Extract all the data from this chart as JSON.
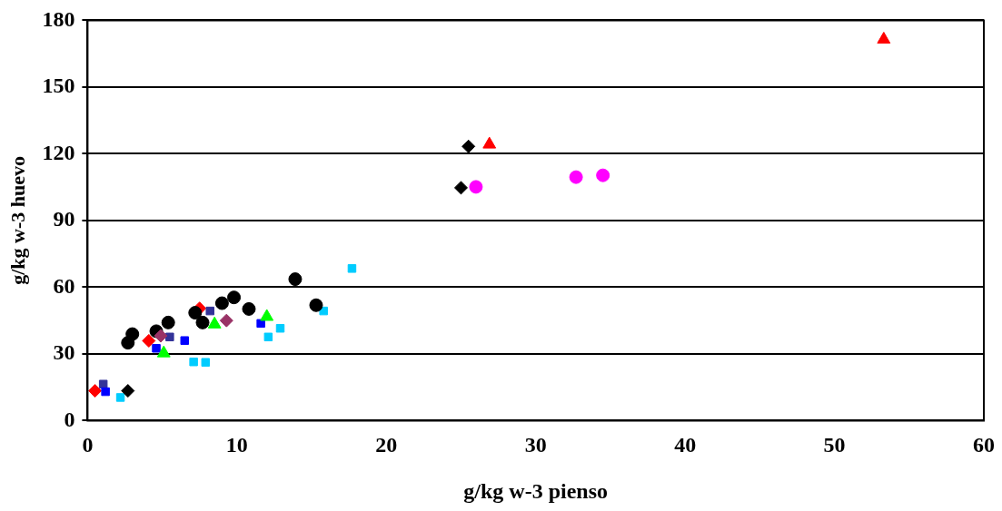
{
  "chart_data": {
    "type": "scatter",
    "xlabel": "g/kg w-3 pienso",
    "ylabel": "g/kg w-3 huevo",
    "xlim": [
      0,
      60
    ],
    "xticks": [
      0,
      10,
      20,
      30,
      40,
      50,
      60
    ],
    "ylim": [
      0,
      180
    ],
    "yticks": [
      0,
      30,
      60,
      90,
      120,
      150,
      180
    ],
    "grid": "y",
    "series": [
      {
        "color": "#ff0000",
        "marker": "diamond",
        "x": [
          0.5,
          4.1,
          7.5
        ],
        "values": [
          13.4,
          35.9,
          50.5
        ]
      },
      {
        "color": "#333399",
        "marker": "square",
        "x": [
          1.05,
          5.5,
          8.2
        ],
        "values": [
          16.4,
          37.6,
          49.3
        ]
      },
      {
        "color": "#0000ff",
        "marker": "square",
        "x": [
          1.2,
          4.6,
          6.5,
          11.6
        ],
        "values": [
          13,
          32.5,
          36,
          43.7
        ]
      },
      {
        "color": "#00ccff",
        "marker": "square",
        "x": [
          2.2,
          7.1,
          7.9,
          12.1,
          12.9,
          15.8,
          17.7
        ],
        "values": [
          10.4,
          26.4,
          26.2,
          37.6,
          41.5,
          49.3,
          68.4
        ]
      },
      {
        "color": "#000000",
        "marker": "diamond",
        "x": [
          2.7,
          25.0,
          25.5
        ],
        "values": [
          13.4,
          104.7,
          123.3
        ]
      },
      {
        "color": "#00ff00",
        "marker": "triangle",
        "x": [
          5.1,
          8.5,
          12.0
        ],
        "values": [
          30.3,
          43.3,
          46.7
        ]
      },
      {
        "color": "#000000",
        "marker": "circle",
        "x": [
          2.7,
          3.0,
          4.6,
          5.4,
          7.2,
          7.7,
          9.0,
          9.8,
          10.8,
          13.9,
          15.3
        ],
        "values": [
          35,
          38.9,
          40.2,
          44.1,
          48.5,
          44.1,
          52.8,
          55.4,
          50.2,
          63.6,
          51.9
        ]
      },
      {
        "color": "#993366",
        "marker": "diamond",
        "x": [
          4.9,
          9.3
        ],
        "values": [
          38.1,
          45
        ]
      },
      {
        "color": "#ff00ff",
        "marker": "circle",
        "x": [
          26.0,
          32.7,
          34.5
        ],
        "values": [
          105.1,
          109.5,
          110.3
        ]
      },
      {
        "color": "#ff0000",
        "marker": "triangle",
        "x": [
          26.9,
          53.3
        ],
        "values": [
          124.2,
          171.4
        ]
      }
    ]
  }
}
